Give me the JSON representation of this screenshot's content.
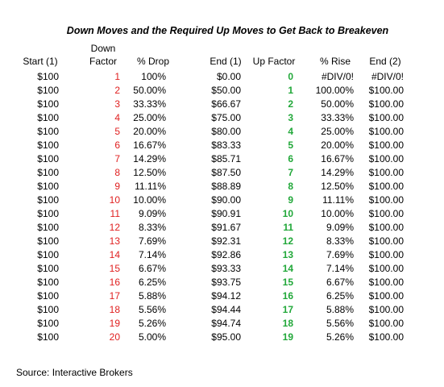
{
  "title": "Down Moves and the Required Up Moves to Get Back to Breakeven",
  "table": {
    "headers": [
      "Start (1)",
      "Down Factor",
      "% Drop",
      "End (1)",
      "Up Factor",
      "% Rise",
      "End (2)"
    ],
    "rows": [
      [
        "$100",
        "1",
        "100%",
        "$0.00",
        "0",
        "#DIV/0!",
        "#DIV/0!"
      ],
      [
        "$100",
        "2",
        "50.00%",
        "$50.00",
        "1",
        "100.00%",
        "$100.00"
      ],
      [
        "$100",
        "3",
        "33.33%",
        "$66.67",
        "2",
        "50.00%",
        "$100.00"
      ],
      [
        "$100",
        "4",
        "25.00%",
        "$75.00",
        "3",
        "33.33%",
        "$100.00"
      ],
      [
        "$100",
        "5",
        "20.00%",
        "$80.00",
        "4",
        "25.00%",
        "$100.00"
      ],
      [
        "$100",
        "6",
        "16.67%",
        "$83.33",
        "5",
        "20.00%",
        "$100.00"
      ],
      [
        "$100",
        "7",
        "14.29%",
        "$85.71",
        "6",
        "16.67%",
        "$100.00"
      ],
      [
        "$100",
        "8",
        "12.50%",
        "$87.50",
        "7",
        "14.29%",
        "$100.00"
      ],
      [
        "$100",
        "9",
        "11.11%",
        "$88.89",
        "8",
        "12.50%",
        "$100.00"
      ],
      [
        "$100",
        "10",
        "10.00%",
        "$90.00",
        "9",
        "11.11%",
        "$100.00"
      ],
      [
        "$100",
        "11",
        "9.09%",
        "$90.91",
        "10",
        "10.00%",
        "$100.00"
      ],
      [
        "$100",
        "12",
        "8.33%",
        "$91.67",
        "11",
        "9.09%",
        "$100.00"
      ],
      [
        "$100",
        "13",
        "7.69%",
        "$92.31",
        "12",
        "8.33%",
        "$100.00"
      ],
      [
        "$100",
        "14",
        "7.14%",
        "$92.86",
        "13",
        "7.69%",
        "$100.00"
      ],
      [
        "$100",
        "15",
        "6.67%",
        "$93.33",
        "14",
        "7.14%",
        "$100.00"
      ],
      [
        "$100",
        "16",
        "6.25%",
        "$93.75",
        "15",
        "6.67%",
        "$100.00"
      ],
      [
        "$100",
        "17",
        "5.88%",
        "$94.12",
        "16",
        "6.25%",
        "$100.00"
      ],
      [
        "$100",
        "18",
        "5.56%",
        "$94.44",
        "17",
        "5.88%",
        "$100.00"
      ],
      [
        "$100",
        "19",
        "5.26%",
        "$94.74",
        "18",
        "5.56%",
        "$100.00"
      ],
      [
        "$100",
        "20",
        "5.00%",
        "$95.00",
        "19",
        "5.26%",
        "$100.00"
      ]
    ]
  },
  "source": "Source: Interactive Brokers"
}
